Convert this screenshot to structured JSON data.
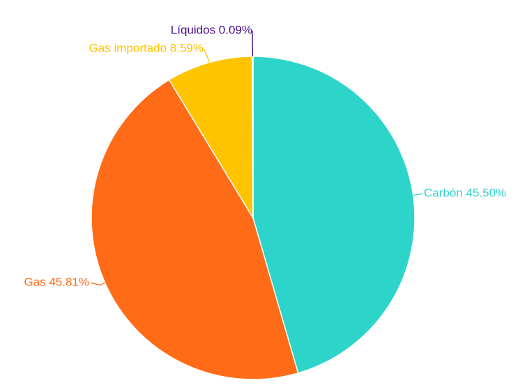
{
  "chart_data": {
    "type": "pie",
    "title": "",
    "slices": [
      {
        "label": "Carbón",
        "value": 45.5,
        "display": "Carbón 45.50%",
        "color": "#2DD4C9"
      },
      {
        "label": "Gas",
        "value": 45.81,
        "display": "Gas 45.81%",
        "color": "#FF6B16"
      },
      {
        "label": "Gas importado",
        "value": 8.59,
        "display": "Gas importado 8.59%",
        "color": "#FFC400"
      },
      {
        "label": "Líquidos",
        "value": 0.09,
        "display": "Líquidos 0.09%",
        "color": "#4A0E8F"
      }
    ]
  }
}
